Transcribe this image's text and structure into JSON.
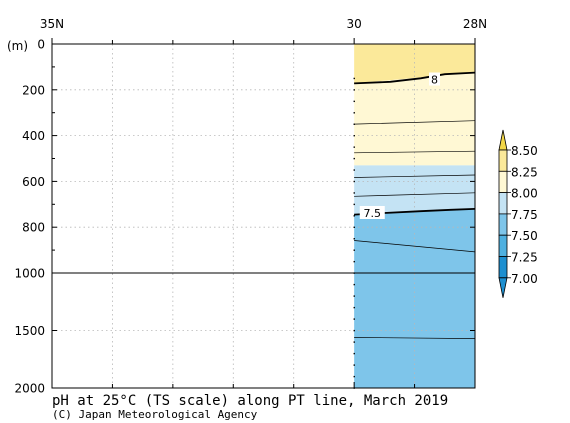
{
  "chart_data": {
    "type": "heatmap",
    "title": "pH at 25°C (TS scale) along PT line, March 2019",
    "credit": "(C) Japan Meteorological Agency",
    "y_unit_label": "(m)",
    "x_axis": {
      "direction": "north-to-south",
      "range_lat_N": [
        35,
        28
      ],
      "tick_labels": [
        {
          "lat": 35,
          "label": "35N"
        },
        {
          "lat": 30,
          "label": "30"
        },
        {
          "lat": 28,
          "label": "28N"
        }
      ],
      "minor_ticks_lat": [
        34,
        33,
        32,
        31,
        29
      ]
    },
    "y_axis": {
      "segments": [
        {
          "depth_range_m": [
            0,
            1000
          ],
          "ticks": [
            0,
            200,
            400,
            600,
            800,
            1000
          ]
        },
        {
          "depth_range_m": [
            1000,
            2000
          ],
          "ticks": [
            1500,
            2000
          ]
        }
      ],
      "tick_labels": [
        "0",
        "200",
        "400",
        "600",
        "800",
        "1000",
        "1500",
        "2000"
      ]
    },
    "colorbar": {
      "levels": [
        "7.00",
        "7.25",
        "7.50",
        "7.75",
        "8.00",
        "8.25",
        "8.50"
      ],
      "colors": [
        "#1d8fd0",
        "#4eb0e0",
        "#7ec5ea",
        "#c4e3f4",
        "#fff8d4",
        "#fbe99a",
        "#f3d748"
      ],
      "extend": "both"
    },
    "data_region_lat": [
      30,
      28
    ],
    "fill_bands": [
      {
        "range": "8.00-8.25",
        "color": "#fbe99a",
        "depth_top": [
          0,
          0
        ],
        "depth_bot": [
          172,
          125
        ]
      },
      {
        "range": "7.75-8.00",
        "color": "#fff8d4",
        "depth_top": [
          172,
          125
        ],
        "depth_bot": [
          530,
          530
        ]
      },
      {
        "range": "7.50-7.75",
        "color": "#c4e3f4",
        "depth_top": [
          530,
          530
        ],
        "depth_bot": [
          745,
          720
        ]
      },
      {
        "range": "7.25-7.50",
        "color": "#7ec5ea",
        "depth_top": [
          745,
          720
        ],
        "depth_bot": [
          2000,
          2000
        ]
      }
    ],
    "contours": [
      {
        "level": 8.0,
        "label": "8",
        "bold": true,
        "points": [
          [
            30,
            172
          ],
          [
            29.4,
            165
          ],
          [
            28.9,
            150
          ],
          [
            28.5,
            132
          ],
          [
            28,
            125
          ]
        ]
      },
      {
        "level": 7.5,
        "label": "7.5",
        "bold": true,
        "points": [
          [
            30,
            745
          ],
          [
            29.5,
            738
          ],
          [
            28.9,
            730
          ],
          [
            28.4,
            724
          ],
          [
            28,
            720
          ]
        ]
      },
      {
        "level": 7.9,
        "bold": false,
        "points": [
          [
            30,
            350
          ],
          [
            28,
            335
          ]
        ]
      },
      {
        "level": 7.8,
        "bold": false,
        "points": [
          [
            30,
            475
          ],
          [
            28,
            468
          ]
        ]
      },
      {
        "level": 7.7,
        "bold": false,
        "points": [
          [
            30,
            583
          ],
          [
            28,
            572
          ]
        ]
      },
      {
        "level": 7.6,
        "bold": false,
        "points": [
          [
            30,
            665
          ],
          [
            28,
            650
          ]
        ]
      },
      {
        "level": 7.4,
        "bold": false,
        "points": [
          [
            30,
            858
          ],
          [
            28,
            908
          ]
        ]
      },
      {
        "level": 7.3,
        "bold": false,
        "points": [
          [
            30,
            1560
          ],
          [
            28,
            1570
          ]
        ]
      }
    ],
    "contour_labels": [
      {
        "text": "8",
        "lat": 28.67,
        "depth": 155
      },
      {
        "text": "7.5",
        "lat": 29.7,
        "depth": 738
      }
    ],
    "station_lat": 30,
    "station_sample_depths_m": [
      150,
      200,
      250,
      300,
      350,
      400,
      450,
      500,
      550,
      600,
      650,
      700,
      750,
      800,
      850,
      900,
      950,
      1000,
      1100,
      1200,
      1300,
      1400,
      1500,
      1600,
      1700,
      1800,
      1900,
      2000
    ],
    "grid": true
  }
}
